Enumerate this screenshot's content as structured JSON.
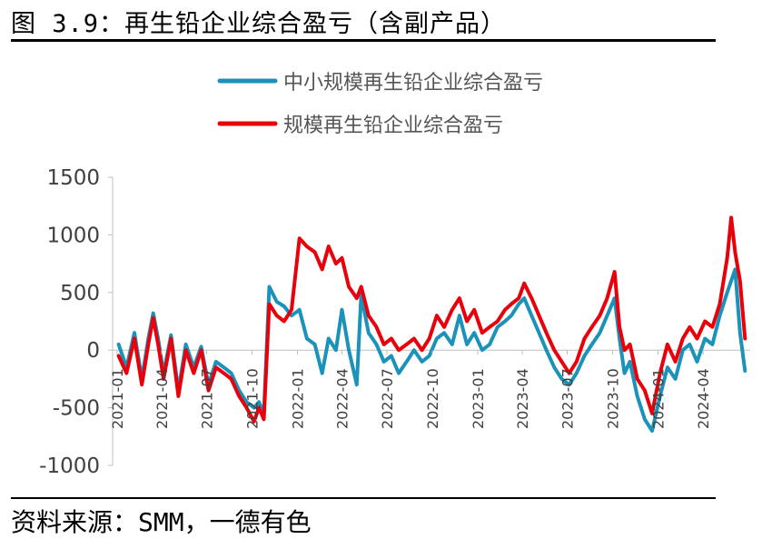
{
  "figure": {
    "title": "图 3.9：再生铅企业综合盈亏（含副产品）",
    "source": "资料来源：SMM，一德有色"
  },
  "chart_data": {
    "type": "line",
    "title": "再生铅企业综合盈亏（含副产品）",
    "xlabel": "",
    "ylabel": "",
    "ylim": [
      -1000,
      1500
    ],
    "yticks": [
      "1500",
      "1000",
      "500",
      "0",
      "-500",
      "-1000"
    ],
    "xticks": [
      "2021-01",
      "2021-04",
      "2021-07",
      "2021-10",
      "2022-01",
      "2022-04",
      "2022-07",
      "2022-10",
      "2023-01",
      "2023-04",
      "2023-07",
      "2023-10",
      "2024-01",
      "2024-04"
    ],
    "x_range": [
      "2021-01",
      "2024-06"
    ],
    "legend_position": "top",
    "grid": false,
    "series": [
      {
        "name": "中小规模再生铅企业综合盈亏",
        "color": "#1B92B9",
        "points": [
          [
            "2021-01-04",
            50
          ],
          [
            "2021-01-20",
            -150
          ],
          [
            "2021-02-05",
            150
          ],
          [
            "2021-02-20",
            -250
          ],
          [
            "2021-03-05",
            100
          ],
          [
            "2021-03-15",
            320
          ],
          [
            "2021-03-25",
            100
          ],
          [
            "2021-04-05",
            -200
          ],
          [
            "2021-04-20",
            130
          ],
          [
            "2021-05-05",
            -350
          ],
          [
            "2021-05-20",
            50
          ],
          [
            "2021-06-05",
            -150
          ],
          [
            "2021-06-20",
            30
          ],
          [
            "2021-07-05",
            -300
          ],
          [
            "2021-07-20",
            -100
          ],
          [
            "2021-08-05",
            -150
          ],
          [
            "2021-08-20",
            -200
          ],
          [
            "2021-09-05",
            -350
          ],
          [
            "2021-09-20",
            -450
          ],
          [
            "2021-10-05",
            -500
          ],
          [
            "2021-10-15",
            -450
          ],
          [
            "2021-10-25",
            -550
          ],
          [
            "2021-11-05",
            550
          ],
          [
            "2021-11-20",
            420
          ],
          [
            "2021-12-05",
            380
          ],
          [
            "2021-12-20",
            300
          ],
          [
            "2022-01-05",
            350
          ],
          [
            "2022-01-20",
            100
          ],
          [
            "2022-02-05",
            50
          ],
          [
            "2022-02-20",
            -200
          ],
          [
            "2022-03-05",
            100
          ],
          [
            "2022-03-20",
            0
          ],
          [
            "2022-04-01",
            350
          ],
          [
            "2022-04-15",
            0
          ],
          [
            "2022-05-01",
            -300
          ],
          [
            "2022-05-10",
            480
          ],
          [
            "2022-05-25",
            150
          ],
          [
            "2022-06-10",
            50
          ],
          [
            "2022-06-25",
            -100
          ],
          [
            "2022-07-10",
            -50
          ],
          [
            "2022-07-25",
            -200
          ],
          [
            "2022-08-10",
            -100
          ],
          [
            "2022-08-25",
            0
          ],
          [
            "2022-09-10",
            -100
          ],
          [
            "2022-09-25",
            -50
          ],
          [
            "2022-10-10",
            100
          ],
          [
            "2022-10-25",
            150
          ],
          [
            "2022-11-10",
            50
          ],
          [
            "2022-11-25",
            300
          ],
          [
            "2022-12-10",
            50
          ],
          [
            "2022-12-25",
            150
          ],
          [
            "2023-01-10",
            0
          ],
          [
            "2023-01-25",
            50
          ],
          [
            "2023-02-10",
            200
          ],
          [
            "2023-02-25",
            250
          ],
          [
            "2023-03-10",
            300
          ],
          [
            "2023-03-25",
            400
          ],
          [
            "2023-04-05",
            450
          ],
          [
            "2023-04-20",
            300
          ],
          [
            "2023-05-05",
            150
          ],
          [
            "2023-05-20",
            0
          ],
          [
            "2023-06-05",
            -150
          ],
          [
            "2023-06-20",
            -250
          ],
          [
            "2023-07-05",
            -300
          ],
          [
            "2023-07-20",
            -200
          ],
          [
            "2023-08-05",
            -50
          ],
          [
            "2023-08-20",
            50
          ],
          [
            "2023-09-05",
            150
          ],
          [
            "2023-09-20",
            300
          ],
          [
            "2023-10-05",
            450
          ],
          [
            "2023-10-15",
            100
          ],
          [
            "2023-10-25",
            -200
          ],
          [
            "2023-11-05",
            -100
          ],
          [
            "2023-11-20",
            -400
          ],
          [
            "2023-12-05",
            -600
          ],
          [
            "2023-12-20",
            -700
          ],
          [
            "2024-01-05",
            -400
          ],
          [
            "2024-01-20",
            -150
          ],
          [
            "2024-02-05",
            -250
          ],
          [
            "2024-02-20",
            0
          ],
          [
            "2024-03-05",
            50
          ],
          [
            "2024-03-20",
            -100
          ],
          [
            "2024-04-05",
            100
          ],
          [
            "2024-04-20",
            50
          ],
          [
            "2024-05-05",
            300
          ],
          [
            "2024-05-20",
            500
          ],
          [
            "2024-06-05",
            700
          ],
          [
            "2024-06-15",
            150
          ],
          [
            "2024-06-25",
            -180
          ]
        ]
      },
      {
        "name": "规模再生铅企业综合盈亏",
        "color": "#E8000B",
        "points": [
          [
            "2021-01-04",
            -50
          ],
          [
            "2021-01-20",
            -200
          ],
          [
            "2021-02-05",
            100
          ],
          [
            "2021-02-20",
            -300
          ],
          [
            "2021-03-05",
            50
          ],
          [
            "2021-03-15",
            280
          ],
          [
            "2021-03-25",
            50
          ],
          [
            "2021-04-05",
            -250
          ],
          [
            "2021-04-20",
            100
          ],
          [
            "2021-05-05",
            -400
          ],
          [
            "2021-05-20",
            0
          ],
          [
            "2021-06-05",
            -200
          ],
          [
            "2021-06-20",
            0
          ],
          [
            "2021-07-05",
            -350
          ],
          [
            "2021-07-20",
            -150
          ],
          [
            "2021-08-05",
            -200
          ],
          [
            "2021-08-20",
            -250
          ],
          [
            "2021-09-05",
            -400
          ],
          [
            "2021-09-20",
            -500
          ],
          [
            "2021-10-05",
            -620
          ],
          [
            "2021-10-15",
            -500
          ],
          [
            "2021-10-25",
            -600
          ],
          [
            "2021-11-05",
            400
          ],
          [
            "2021-11-20",
            300
          ],
          [
            "2021-12-05",
            250
          ],
          [
            "2021-12-20",
            350
          ],
          [
            "2022-01-05",
            970
          ],
          [
            "2022-01-20",
            900
          ],
          [
            "2022-02-05",
            850
          ],
          [
            "2022-02-20",
            700
          ],
          [
            "2022-03-05",
            900
          ],
          [
            "2022-03-20",
            750
          ],
          [
            "2022-04-01",
            800
          ],
          [
            "2022-04-15",
            550
          ],
          [
            "2022-05-01",
            450
          ],
          [
            "2022-05-10",
            550
          ],
          [
            "2022-05-25",
            300
          ],
          [
            "2022-06-10",
            200
          ],
          [
            "2022-06-25",
            50
          ],
          [
            "2022-07-10",
            100
          ],
          [
            "2022-07-25",
            0
          ],
          [
            "2022-08-10",
            50
          ],
          [
            "2022-08-25",
            100
          ],
          [
            "2022-09-10",
            0
          ],
          [
            "2022-09-25",
            100
          ],
          [
            "2022-10-10",
            300
          ],
          [
            "2022-10-25",
            200
          ],
          [
            "2022-11-10",
            350
          ],
          [
            "2022-11-25",
            450
          ],
          [
            "2022-12-10",
            250
          ],
          [
            "2022-12-25",
            350
          ],
          [
            "2023-01-10",
            150
          ],
          [
            "2023-01-25",
            200
          ],
          [
            "2023-02-10",
            250
          ],
          [
            "2023-02-25",
            350
          ],
          [
            "2023-03-10",
            400
          ],
          [
            "2023-03-25",
            450
          ],
          [
            "2023-04-05",
            580
          ],
          [
            "2023-04-20",
            450
          ],
          [
            "2023-05-05",
            300
          ],
          [
            "2023-05-20",
            150
          ],
          [
            "2023-06-05",
            0
          ],
          [
            "2023-06-20",
            -100
          ],
          [
            "2023-07-05",
            -200
          ],
          [
            "2023-07-20",
            -100
          ],
          [
            "2023-08-05",
            100
          ],
          [
            "2023-08-20",
            200
          ],
          [
            "2023-09-05",
            300
          ],
          [
            "2023-09-20",
            450
          ],
          [
            "2023-10-05",
            680
          ],
          [
            "2023-10-15",
            200
          ],
          [
            "2023-10-25",
            0
          ],
          [
            "2023-11-05",
            50
          ],
          [
            "2023-11-20",
            -250
          ],
          [
            "2023-12-05",
            -350
          ],
          [
            "2023-12-20",
            -550
          ],
          [
            "2024-01-05",
            -200
          ],
          [
            "2024-01-20",
            50
          ],
          [
            "2024-02-05",
            -100
          ],
          [
            "2024-02-20",
            100
          ],
          [
            "2024-03-05",
            200
          ],
          [
            "2024-03-20",
            100
          ],
          [
            "2024-04-05",
            250
          ],
          [
            "2024-04-20",
            200
          ],
          [
            "2024-05-05",
            400
          ],
          [
            "2024-05-20",
            800
          ],
          [
            "2024-05-28",
            1150
          ],
          [
            "2024-06-05",
            850
          ],
          [
            "2024-06-15",
            600
          ],
          [
            "2024-06-25",
            100
          ]
        ]
      }
    ]
  }
}
